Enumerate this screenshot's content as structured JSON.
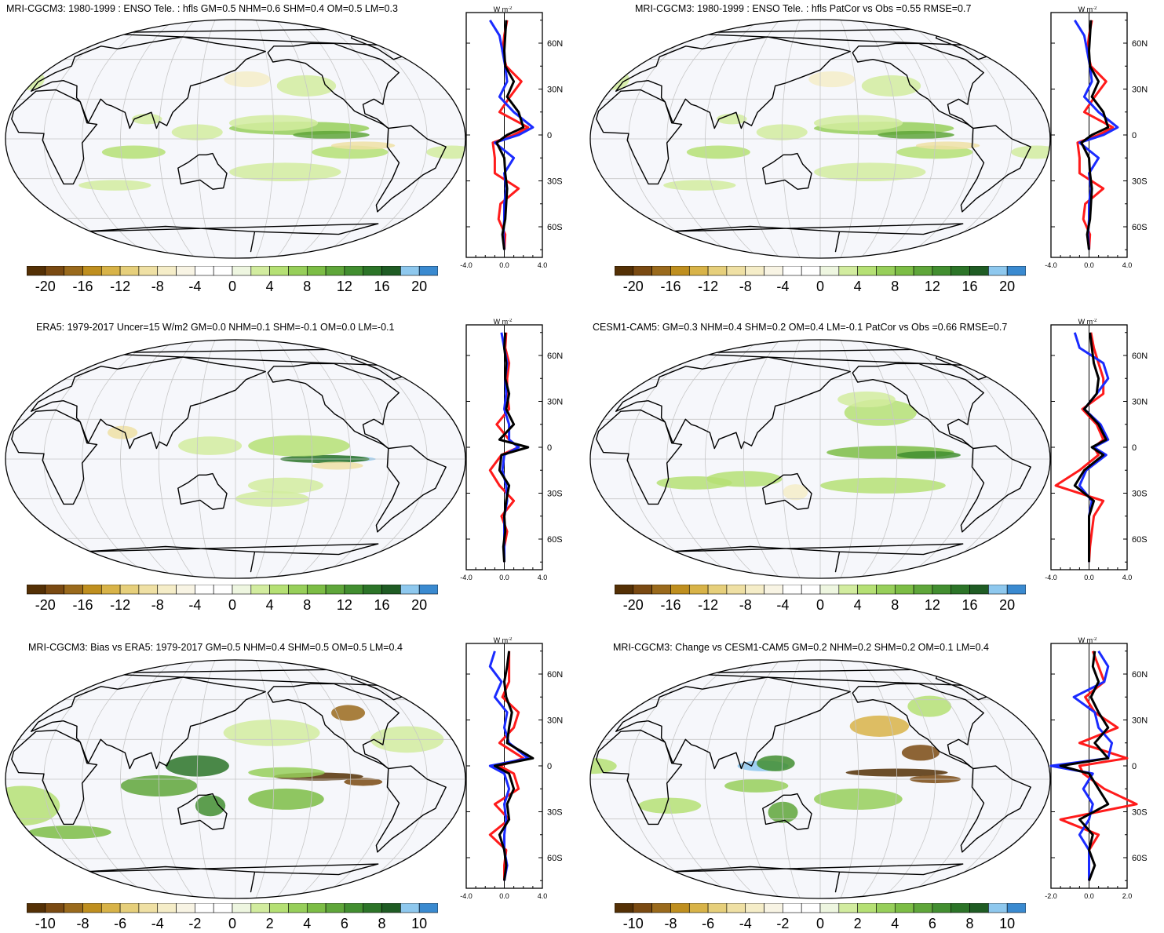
{
  "colors": {
    "colorbar": [
      "#543005",
      "#7a4a12",
      "#9a6a1c",
      "#bf8f1f",
      "#d8b348",
      "#e6cf7b",
      "#efe0a4",
      "#f5edc8",
      "#f8f4e4",
      "#ffffff",
      "#ffffff",
      "#eef6e0",
      "#d2ec9f",
      "#b5e074",
      "#97cf5a",
      "#7cbd45",
      "#5fa63a",
      "#428e30",
      "#2c7428",
      "#1f5c24",
      "#8ec8ee",
      "#3a8ad0"
    ],
    "obs_line": "#000000",
    "model_a": "#ff1b1b",
    "model_b": "#1a2bff",
    "ocean": "#f6f7fb",
    "grid": "#c7c7c7"
  },
  "units_label": "W m",
  "units_exp": "-2",
  "panels": [
    {
      "id": "p1",
      "title": "MRI-CGCM3: 1980-1999 : ENSO Tele. : hfls GM=0.5 NHM=0.6 SHM=0.4 OM=0.5 LM=0.3",
      "colorbar_labels": [
        "-20",
        "-16",
        "-12",
        "-8",
        "-4",
        "0",
        "4",
        "8",
        "12",
        "16",
        "20"
      ],
      "zonal_xticks": [
        "-4.0",
        "0.0",
        "4.0"
      ],
      "lat_labels": [
        "60N",
        "30N",
        "0",
        "30S",
        "60S"
      ]
    },
    {
      "id": "p2",
      "title": "MRI-CGCM3: 1980-1999 : ENSO Tele. : hfls PatCor vs Obs =0.55 RMSE=0.7",
      "colorbar_labels": [
        "-20",
        "-16",
        "-12",
        "-8",
        "-4",
        "0",
        "4",
        "8",
        "12",
        "16",
        "20"
      ],
      "zonal_xticks": [
        "-4.0",
        "0.0",
        "4.0"
      ],
      "lat_labels": [
        "60N",
        "30N",
        "0",
        "30S",
        "60S"
      ]
    },
    {
      "id": "p3",
      "title": "ERA5: 1979-2017 Uncer=15 W/m2 GM=0.0 NHM=0.1 SHM=-0.1 OM=0.0 LM=-0.1",
      "colorbar_labels": [
        "-20",
        "-16",
        "-12",
        "-8",
        "-4",
        "0",
        "4",
        "8",
        "12",
        "16",
        "20"
      ],
      "zonal_xticks": [
        "-4.0",
        "0.0",
        "4.0"
      ],
      "lat_labels": [
        "60N",
        "30N",
        "0",
        "30S",
        "60S"
      ]
    },
    {
      "id": "p4",
      "title": "CESM1-CAM5: GM=0.3 NHM=0.4 SHM=0.2 OM=0.4 LM=-0.1 PatCor vs Obs =0.66 RMSE=0.7",
      "colorbar_labels": [
        "-20",
        "-16",
        "-12",
        "-8",
        "-4",
        "0",
        "4",
        "8",
        "12",
        "16",
        "20"
      ],
      "zonal_xticks": [
        "-4.0",
        "0.0",
        "4.0"
      ],
      "lat_labels": [
        "60N",
        "30N",
        "0",
        "30S",
        "60S"
      ]
    },
    {
      "id": "p5",
      "title": "MRI-CGCM3: Bias vs ERA5: 1979-2017 GM=0.5 NHM=0.4 SHM=0.5 OM=0.5 LM=0.4",
      "colorbar_labels": [
        "-10",
        "-8",
        "-6",
        "-4",
        "-2",
        "0",
        "2",
        "4",
        "6",
        "8",
        "10"
      ],
      "zonal_xticks": [
        "-4.0",
        "0.0",
        "4.0"
      ],
      "lat_labels": [
        "60N",
        "30N",
        "0",
        "30S",
        "60S"
      ]
    },
    {
      "id": "p6",
      "title": "MRI-CGCM3: Change vs CESM1-CAM5 GM=0.2 NHM=0.2 SHM=0.2 OM=0.1 LM=0.4",
      "colorbar_labels": [
        "-10",
        "-8",
        "-6",
        "-4",
        "-2",
        "0",
        "2",
        "4",
        "6",
        "8",
        "10"
      ],
      "zonal_xticks": [
        "-2.0",
        "0.0",
        "2.0"
      ],
      "lat_labels": [
        "60N",
        "30N",
        "0",
        "30S",
        "60S"
      ]
    }
  ],
  "chart_data": [
    {
      "type": "heatmap",
      "title": "MRI-CGCM3: 1980-1999 : ENSO Tele. : hfls GM=0.5 NHM=0.6 SHM=0.4 OM=0.5 LM=0.3",
      "colorbar_range": [
        -20,
        20
      ],
      "colorbar_step": 2,
      "zonal_mean": {
        "type": "line",
        "xlim": [
          -4,
          4
        ],
        "ylim": [
          -80,
          80
        ],
        "lat": [
          75,
          65,
          55,
          45,
          35,
          25,
          15,
          5,
          0,
          -5,
          -15,
          -25,
          -35,
          -45,
          -55,
          -65,
          -75
        ],
        "series": [
          {
            "color": "black",
            "values": [
              0.2,
              0.1,
              0.0,
              0.1,
              1.0,
              0.3,
              1.5,
              2.0,
              0.3,
              -0.8,
              0.0,
              0.1,
              0.3,
              0.2,
              0.1,
              -0.2,
              0.0
            ]
          },
          {
            "color": "red",
            "values": [
              0.3,
              0.0,
              -0.2,
              0.2,
              1.8,
              0.6,
              -0.5,
              2.5,
              1.0,
              -1.2,
              -1.0,
              -1.0,
              1.5,
              -0.4,
              -0.6,
              0.1,
              0.0
            ]
          },
          {
            "color": "blue",
            "values": [
              -1.5,
              -0.5,
              -0.2,
              0.1,
              0.3,
              -0.5,
              1.0,
              3.0,
              1.5,
              -1.0,
              1.0,
              0.0,
              0.2,
              0.0,
              0.0,
              -0.1,
              0.0
            ]
          }
        ]
      }
    },
    {
      "type": "heatmap",
      "title": "MRI-CGCM3: 1980-1999 : ENSO Tele. : hfls PatCor vs Obs =0.55 RMSE=0.7",
      "colorbar_range": [
        -20,
        20
      ],
      "colorbar_step": 2,
      "zonal_mean": {
        "type": "line",
        "xlim": [
          -4,
          4
        ],
        "ylim": [
          -80,
          80
        ],
        "lat": [
          75,
          65,
          55,
          45,
          35,
          25,
          15,
          5,
          0,
          -5,
          -15,
          -25,
          -35,
          -45,
          -55,
          -65,
          -75
        ],
        "series": [
          {
            "color": "black",
            "values": [
              0.2,
              0.1,
              0.0,
              0.1,
              1.0,
              0.3,
              1.5,
              2.0,
              0.3,
              -0.8,
              0.0,
              0.1,
              0.3,
              0.2,
              0.1,
              -0.2,
              0.0
            ]
          },
          {
            "color": "red",
            "values": [
              0.3,
              0.0,
              -0.2,
              0.2,
              1.8,
              0.6,
              -0.5,
              2.5,
              1.0,
              -1.2,
              -1.0,
              -1.0,
              1.5,
              -0.4,
              -0.6,
              0.1,
              0.0
            ]
          },
          {
            "color": "blue",
            "values": [
              -1.5,
              -0.5,
              -0.2,
              0.1,
              0.3,
              -0.5,
              1.0,
              3.0,
              1.5,
              -1.0,
              1.0,
              0.0,
              0.2,
              0.0,
              0.0,
              -0.1,
              0.0
            ]
          }
        ]
      }
    },
    {
      "type": "heatmap",
      "title": "ERA5: 1979-2017 Uncer=15 W/m2 GM=0.0 NHM=0.1 SHM=-0.1 OM=0.0 LM=-0.1",
      "colorbar_range": [
        -20,
        20
      ],
      "colorbar_step": 2,
      "zonal_mean": {
        "type": "line",
        "xlim": [
          -4,
          4
        ],
        "ylim": [
          -80,
          80
        ],
        "lat": [
          75,
          65,
          55,
          45,
          35,
          25,
          15,
          5,
          0,
          -5,
          -15,
          -25,
          -35,
          -45,
          -55,
          -65,
          -75
        ],
        "series": [
          {
            "color": "black",
            "values": [
              0.1,
              0.0,
              0.2,
              0.1,
              0.5,
              0.2,
              1.0,
              -0.5,
              2.5,
              -0.3,
              -0.5,
              0.5,
              0.2,
              0.0,
              0.1,
              -0.1,
              0.0
            ]
          },
          {
            "color": "red",
            "values": [
              0.2,
              0.1,
              0.5,
              0.3,
              0.3,
              0.5,
              -0.8,
              0.5,
              1.5,
              -0.3,
              -1.5,
              -0.5,
              1.0,
              -0.3,
              0.3,
              0.0,
              0.0
            ]
          },
          {
            "color": "blue",
            "values": [
              -0.3,
              0.0,
              0.3,
              0.1,
              0.2,
              0.0,
              0.5,
              0.5,
              1.5,
              0.0,
              -0.2,
              0.2,
              0.3,
              0.0,
              0.0,
              0.0,
              0.0
            ]
          }
        ]
      }
    },
    {
      "type": "heatmap",
      "title": "CESM1-CAM5: GM=0.3 NHM=0.4 SHM=0.2 OM=0.4 LM=-0.1 PatCor vs Obs =0.66 RMSE=0.7",
      "colorbar_range": [
        -20,
        20
      ],
      "colorbar_step": 2,
      "zonal_mean": {
        "type": "line",
        "xlim": [
          -4,
          4
        ],
        "ylim": [
          -80,
          80
        ],
        "lat": [
          75,
          65,
          55,
          45,
          35,
          25,
          15,
          5,
          0,
          -5,
          -15,
          -25,
          -35,
          -45,
          -55,
          -65,
          -75
        ],
        "series": [
          {
            "color": "black",
            "values": [
              0.1,
              0.3,
              0.5,
              1.0,
              0.8,
              -0.5,
              1.0,
              1.8,
              0.3,
              1.5,
              -0.5,
              -1.5,
              0.5,
              0.0,
              0.0,
              0.0,
              0.0
            ]
          },
          {
            "color": "red",
            "values": [
              0.2,
              0.5,
              1.0,
              1.5,
              1.5,
              -0.7,
              0.8,
              1.5,
              0.5,
              1.0,
              -1.0,
              -3.5,
              1.5,
              0.5,
              0.3,
              0.1,
              0.0
            ]
          },
          {
            "color": "blue",
            "values": [
              -1.5,
              -1.0,
              1.5,
              2.0,
              0.8,
              -0.5,
              1.2,
              2.0,
              0.5,
              1.8,
              -0.3,
              -1.0,
              0.3,
              0.0,
              0.0,
              0.0,
              0.0
            ]
          }
        ]
      }
    },
    {
      "type": "heatmap",
      "title": "MRI-CGCM3: Bias vs ERA5: 1979-2017 GM=0.5 NHM=0.4 SHM=0.5 OM=0.5 LM=0.4",
      "colorbar_range": [
        -10,
        10
      ],
      "colorbar_step": 1,
      "zonal_mean": {
        "type": "line",
        "xlim": [
          -4,
          4
        ],
        "ylim": [
          -80,
          80
        ],
        "lat": [
          75,
          65,
          55,
          45,
          35,
          25,
          15,
          5,
          0,
          -5,
          -15,
          -25,
          -35,
          -45,
          -55,
          -65,
          -75
        ],
        "series": [
          {
            "color": "black",
            "values": [
              0.5,
              0.3,
              0.0,
              0.2,
              0.8,
              0.5,
              0.3,
              3.0,
              -1.0,
              0.5,
              1.0,
              0.3,
              0.5,
              -0.5,
              0.0,
              0.2,
              0.0
            ]
          },
          {
            "color": "red",
            "values": [
              0.5,
              0.5,
              0.5,
              -0.2,
              1.5,
              1.0,
              -0.5,
              2.0,
              -0.5,
              1.0,
              1.5,
              -1.0,
              0.5,
              -1.5,
              0.2,
              0.0,
              0.0
            ]
          },
          {
            "color": "blue",
            "values": [
              -1.0,
              -1.5,
              -0.3,
              -1.0,
              0.3,
              0.0,
              0.5,
              2.5,
              -1.5,
              0.0,
              0.5,
              0.0,
              0.2,
              0.0,
              0.0,
              0.3,
              0.0
            ]
          }
        ]
      }
    },
    {
      "type": "heatmap",
      "title": "MRI-CGCM3: Change vs CESM1-CAM5 GM=0.2 NHM=0.2 SHM=0.2 OM=0.1 LM=0.4",
      "colorbar_range": [
        -10,
        10
      ],
      "colorbar_step": 1,
      "zonal_mean": {
        "type": "line",
        "xlim": [
          -2,
          2
        ],
        "ylim": [
          -80,
          80
        ],
        "lat": [
          75,
          65,
          55,
          45,
          35,
          25,
          15,
          5,
          0,
          -5,
          -15,
          -25,
          -35,
          -45,
          -55,
          -65,
          -75
        ],
        "series": [
          {
            "color": "black",
            "values": [
              0.3,
              0.2,
              0.5,
              0.1,
              0.5,
              1.0,
              0.3,
              1.0,
              -1.5,
              0.0,
              0.5,
              1.0,
              -0.5,
              0.2,
              0.0,
              0.3,
              0.0
            ]
          },
          {
            "color": "red",
            "values": [
              0.2,
              0.5,
              0.8,
              -0.2,
              0.3,
              1.5,
              -0.5,
              2.0,
              -0.5,
              -0.3,
              0.8,
              2.5,
              -1.5,
              0.5,
              0.0,
              0.0,
              0.0
            ]
          },
          {
            "color": "blue",
            "values": [
              0.5,
              1.0,
              0.8,
              -0.8,
              0.3,
              0.5,
              1.2,
              1.0,
              -2.0,
              0.2,
              -0.3,
              0.2,
              0.0,
              -0.5,
              0.0,
              0.0,
              0.0
            ]
          }
        ]
      }
    }
  ]
}
